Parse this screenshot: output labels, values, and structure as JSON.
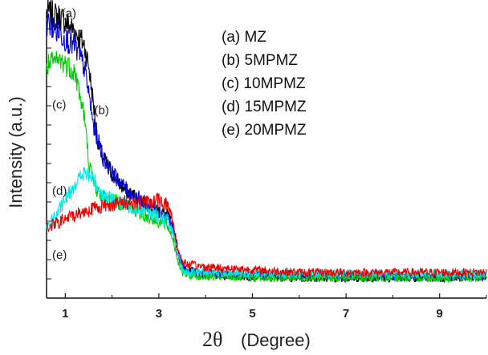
{
  "chart_data": {
    "type": "line",
    "title": "",
    "ylabel": "Intensity (a.u.)",
    "xlabel_symbol": "2θ",
    "xlabel_unit": "(Degree)",
    "xlim": [
      0.6,
      10
    ],
    "ylim": [
      0,
      100
    ],
    "x_ticks": [
      1,
      3,
      5,
      7,
      9
    ],
    "y_tick_labels_shown": false,
    "grid": false,
    "legend_position": "top-right",
    "legend": [
      "(a) MZ",
      "(b) 5MPMZ",
      "(c) 10MPMZ",
      "(d) 15MPMZ",
      "(e) 20MPMZ"
    ],
    "series": [
      {
        "id": "a",
        "name": "MZ",
        "color": "#000000",
        "x": [
          0.6,
          0.9,
          1.2,
          1.4,
          1.5,
          1.6,
          1.7,
          1.8,
          2.0,
          2.3,
          2.7,
          3.0,
          3.2,
          3.3,
          3.4,
          3.5,
          3.6,
          4.0,
          5.0,
          6.0,
          7.0,
          8.0,
          9.0,
          10.0
        ],
        "y": [
          100,
          98,
          93,
          88,
          80,
          66,
          52,
          46,
          40,
          33,
          29,
          26,
          24,
          20,
          12,
          6,
          4,
          2,
          1.5,
          1,
          1,
          1,
          1,
          1
        ]
      },
      {
        "id": "b",
        "name": "5MPMZ",
        "color": "#0000dd",
        "x": [
          0.6,
          0.9,
          1.2,
          1.4,
          1.5,
          1.6,
          1.7,
          1.8,
          2.0,
          2.3,
          2.7,
          3.0,
          3.2,
          3.3,
          3.4,
          3.5,
          3.6,
          4.0,
          5.0,
          6.0,
          7.0,
          8.0,
          9.0,
          10.0
        ],
        "y": [
          96,
          92,
          87,
          80,
          70,
          58,
          52,
          46,
          40,
          34,
          29,
          26,
          23,
          19,
          11,
          5,
          3.5,
          2.5,
          2,
          1.8,
          1.5,
          1.5,
          1.5,
          1.5
        ]
      },
      {
        "id": "c",
        "name": "10MPMZ",
        "color": "#00cc00",
        "x": [
          0.6,
          0.9,
          1.2,
          1.4,
          1.5,
          1.6,
          1.7,
          1.8,
          2.0,
          2.3,
          2.7,
          3.0,
          3.2,
          3.3,
          3.4,
          3.5,
          3.6,
          4.0,
          5.0,
          6.0,
          7.0,
          8.0,
          9.0,
          10.0
        ],
        "y": [
          80,
          82,
          78,
          62,
          45,
          36,
          33,
          31,
          30,
          28,
          24,
          22,
          20,
          16,
          8,
          3,
          2,
          1.5,
          1,
          1,
          1,
          1,
          1,
          1
        ]
      },
      {
        "id": "d",
        "name": "15MPMZ",
        "color": "#00e8e8",
        "x": [
          0.6,
          0.8,
          1.0,
          1.2,
          1.4,
          1.6,
          1.8,
          2.0,
          2.3,
          2.7,
          3.0,
          3.2,
          3.3,
          3.4,
          3.5,
          3.6,
          4.0,
          5.0,
          6.0,
          7.0,
          8.0,
          9.0,
          10.0
        ],
        "y": [
          20,
          24,
          30,
          36,
          40,
          38,
          32,
          30,
          28,
          26,
          24,
          22,
          18,
          10,
          4,
          3,
          3,
          2.5,
          2.5,
          2.5,
          2.5,
          2.5,
          2.5
        ]
      },
      {
        "id": "e",
        "name": "20MPMZ",
        "color": "#ee0000",
        "x": [
          0.6,
          0.8,
          1.0,
          1.3,
          1.6,
          1.9,
          2.2,
          2.5,
          2.8,
          3.0,
          3.2,
          3.3,
          3.4,
          3.5,
          3.6,
          4.0,
          5.0,
          6.0,
          7.0,
          8.0,
          9.0,
          10.0
        ],
        "y": [
          20,
          21,
          23,
          25,
          27,
          28,
          29,
          29,
          29,
          30,
          28,
          22,
          12,
          7,
          6,
          5,
          4,
          3,
          3,
          3,
          3,
          3
        ]
      }
    ],
    "annotations": [
      {
        "text": "(a)",
        "x": 0.92,
        "y": 98
      },
      {
        "text": "(b)",
        "x": 1.62,
        "y": 62
      },
      {
        "text": "(c)",
        "x": 0.72,
        "y": 64
      },
      {
        "text": "(d)",
        "x": 0.72,
        "y": 32
      },
      {
        "text": "(e)",
        "x": 0.72,
        "y": 8
      }
    ]
  }
}
